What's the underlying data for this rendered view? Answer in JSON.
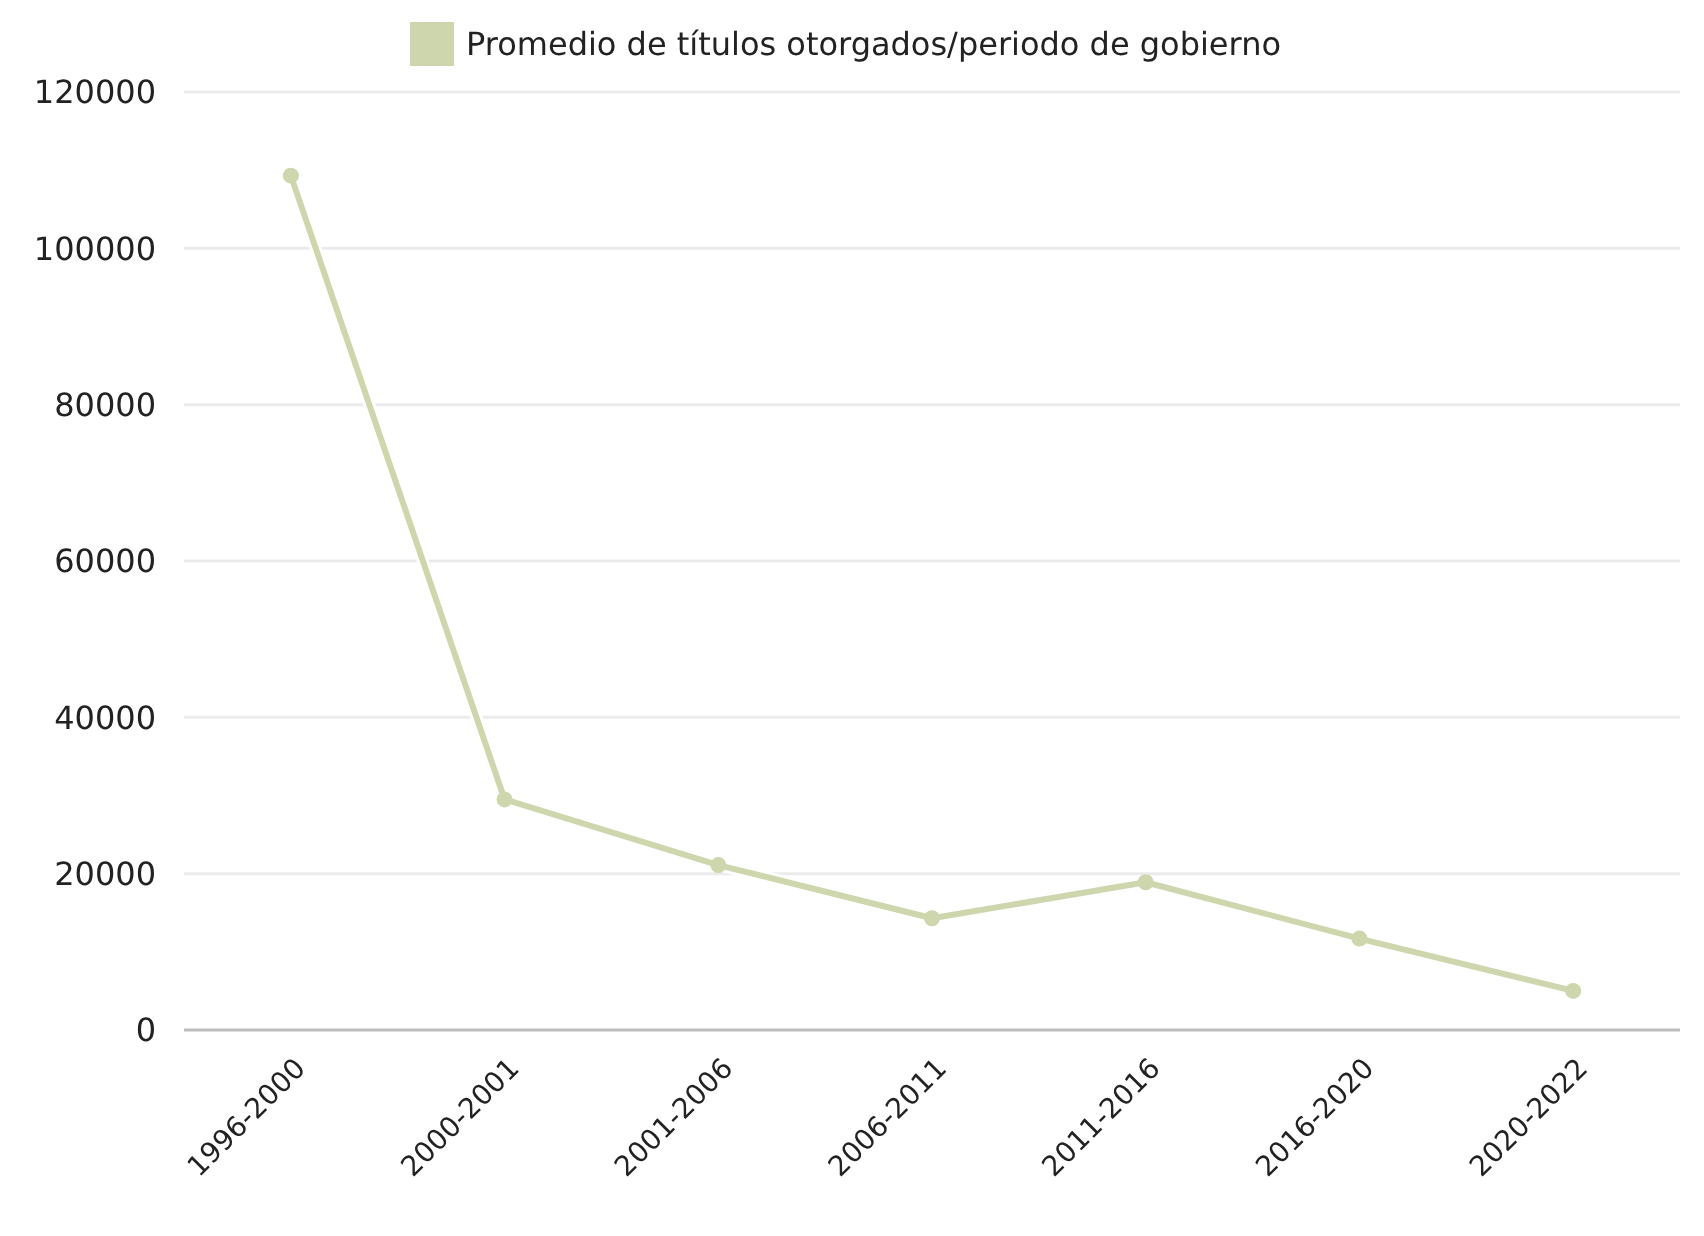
{
  "chart_data": {
    "type": "line",
    "categories": [
      "1996-2000",
      "2000-2001",
      "2001-2006",
      "2006-2011",
      "2011-2016",
      "2016-2020",
      "2020-2022"
    ],
    "series": [
      {
        "name": "Promedio de títulos otorgados/periodo de gobierno",
        "color": "#cdd6ad",
        "values": [
          109300,
          29500,
          21100,
          14300,
          18900,
          11700,
          5000
        ]
      }
    ],
    "ylim": [
      0,
      120000
    ],
    "yticks": [
      0,
      20000,
      40000,
      60000,
      80000,
      100000,
      120000
    ],
    "grid": "y",
    "legend": "top",
    "marker": "circle",
    "line_style": "solid"
  }
}
